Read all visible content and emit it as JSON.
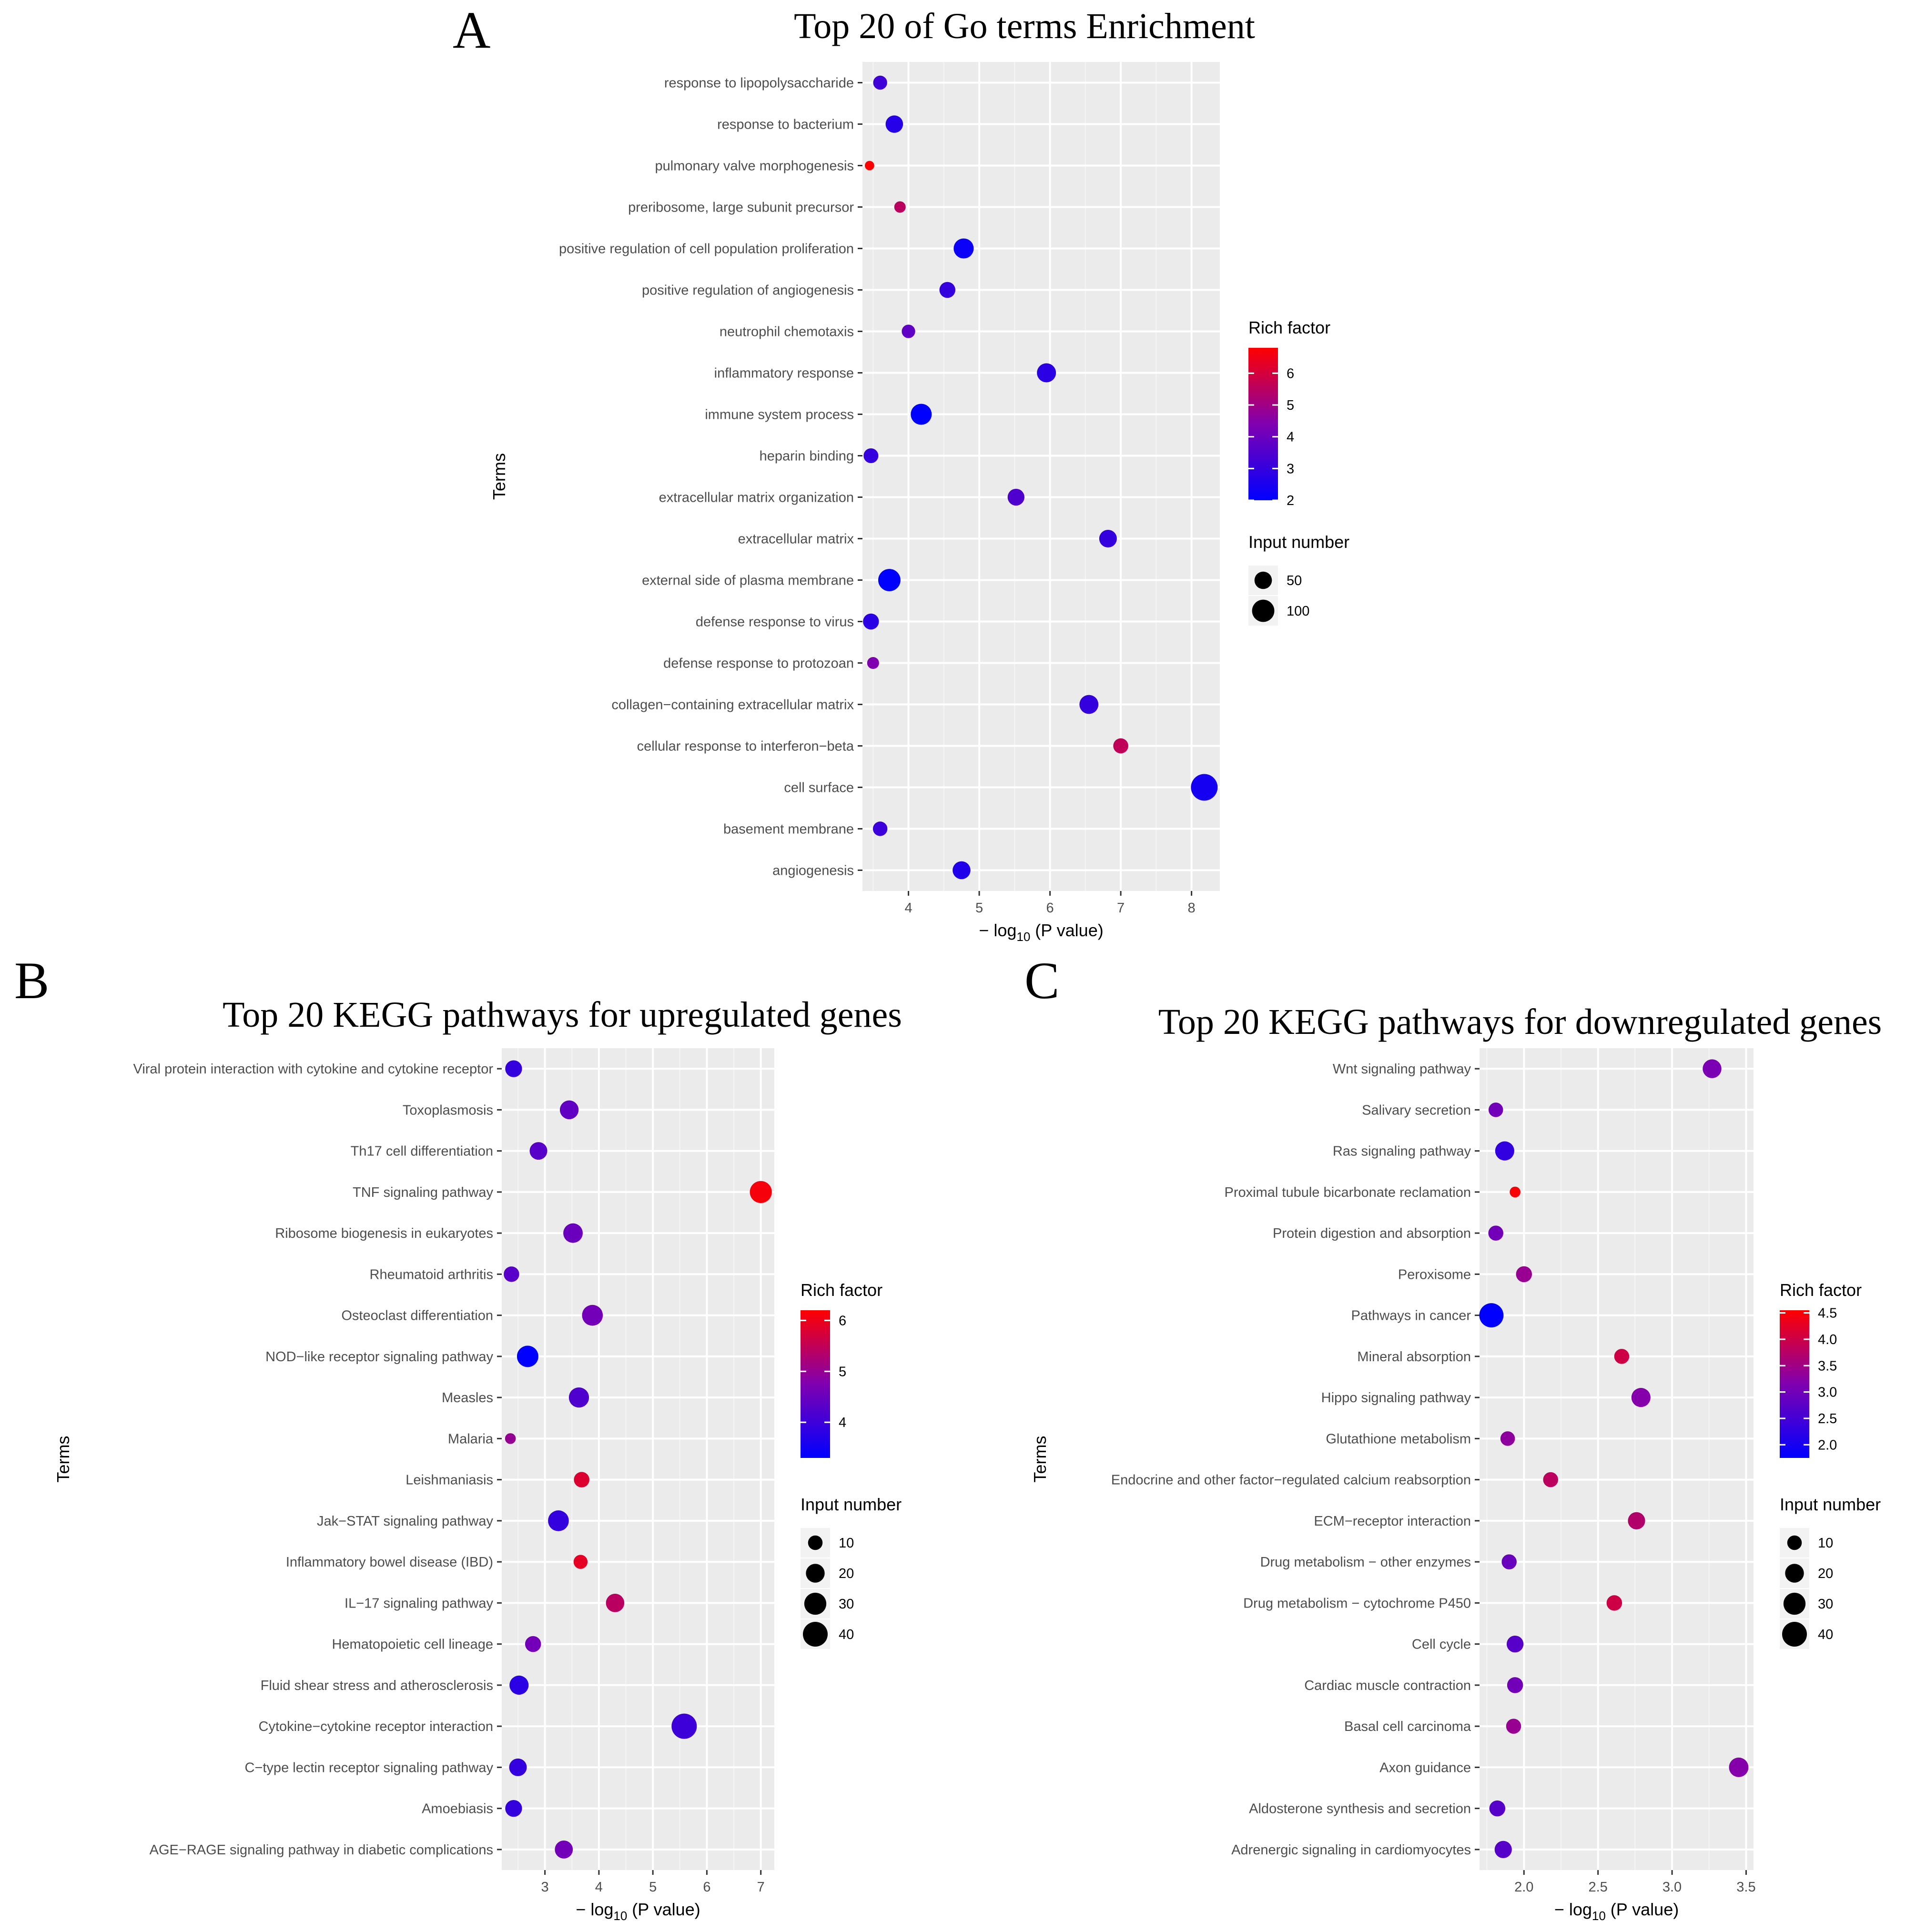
{
  "chart_data": [
    {
      "panel": "A",
      "type": "scatter",
      "title": "Top 20 of Go terms Enrichment",
      "xlabel_prefix": "− log",
      "xlabel_sub": "10",
      "xlabel_suffix": " (P value)",
      "ylabel": "Terms",
      "xlim": [
        3.35,
        8.4
      ],
      "xticks": [
        4,
        5,
        6,
        7,
        8
      ],
      "color_legend": {
        "title": "Rich factor",
        "min": 2,
        "max": 6.8,
        "ticks": [
          2,
          3,
          4,
          5,
          6
        ]
      },
      "size_legend": {
        "title": "Input number",
        "domain": [
          0,
          160
        ],
        "entries": [
          50,
          100
        ]
      },
      "terms": [
        "response to lipopolysaccharide",
        "response to bacterium",
        "pulmonary valve morphogenesis",
        "preribosome, large subunit precursor",
        "positive regulation of cell population proliferation",
        "positive regulation of angiogenesis",
        "neutrophil chemotaxis",
        "inflammatory response",
        "immune system process",
        "heparin binding",
        "extracellular matrix organization",
        "extracellular matrix",
        "external side of plasma membrane",
        "defense response to virus",
        "defense response to protozoan",
        "collagen−containing extracellular matrix",
        "cellular response to interferon−beta",
        "cell surface",
        "basement membrane",
        "angiogenesis"
      ],
      "x": [
        3.6,
        3.8,
        3.45,
        3.88,
        4.78,
        4.55,
        4.0,
        5.95,
        4.18,
        3.47,
        5.52,
        6.82,
        3.73,
        3.47,
        3.5,
        6.55,
        7.0,
        8.18,
        3.6,
        4.75
      ],
      "rich_factor": [
        3.2,
        2.7,
        6.8,
        5.5,
        2.2,
        3.0,
        3.8,
        2.8,
        2.0,
        3.0,
        3.5,
        3.0,
        2.0,
        2.8,
        4.4,
        3.0,
        5.6,
        2.4,
        3.1,
        2.6
      ],
      "input_number": [
        25,
        50,
        5,
        12,
        75,
        38,
        22,
        65,
        85,
        30,
        45,
        52,
        100,
        38,
        14,
        64,
        32,
        160,
        28,
        54
      ]
    },
    {
      "panel": "B",
      "type": "scatter",
      "title": "Top 20 KEGG pathways for upregulated genes",
      "xlabel_prefix": "− log",
      "xlabel_sub": "10",
      "xlabel_suffix": " (P value)",
      "ylabel": "Terms",
      "xlim": [
        2.2,
        7.25
      ],
      "xticks": [
        3,
        4,
        5,
        6,
        7
      ],
      "color_legend": {
        "title": "Rich factor",
        "min": 3.3,
        "max": 6.2,
        "ticks": [
          4,
          5,
          6
        ]
      },
      "size_legend": {
        "title": "Input number",
        "domain": [
          0,
          40
        ],
        "entries": [
          10,
          20,
          30,
          40
        ]
      },
      "terms": [
        "Viral protein interaction with cytokine and cytokine receptor",
        "Toxoplasmosis",
        "Th17 cell differentiation",
        "TNF signaling pathway",
        "Ribosome biogenesis in eukaryotes",
        "Rheumatoid arthritis",
        "Osteoclast differentiation",
        "NOD−like receptor signaling pathway",
        "Measles",
        "Malaria",
        "Leishmaniasis",
        "Jak−STAT signaling pathway",
        "Inflammatory bowel disease (IBD)",
        "IL−17 signaling pathway",
        "Hematopoietic cell lineage",
        "Fluid shear stress and atherosclerosis",
        "Cytokine−cytokine receptor interaction",
        "C−type lectin receptor signaling pathway",
        "Amoebiasis",
        "AGE−RAGE signaling pathway in diabetic complications"
      ],
      "x": [
        2.42,
        3.45,
        2.88,
        7.0,
        3.52,
        2.38,
        3.88,
        2.68,
        3.63,
        2.36,
        3.68,
        3.25,
        3.66,
        4.3,
        2.78,
        2.52,
        5.58,
        2.5,
        2.42,
        3.35
      ],
      "rich_factor": [
        3.9,
        4.4,
        4.3,
        6.1,
        4.5,
        4.3,
        4.6,
        3.3,
        4.2,
        5.0,
        5.8,
        3.9,
        5.9,
        5.4,
        4.6,
        3.8,
        4.0,
        3.9,
        3.9,
        4.6
      ],
      "input_number": [
        15,
        20,
        17,
        30,
        22,
        12,
        26,
        28,
        24,
        4,
        12,
        26,
        9,
        19,
        13,
        21,
        42,
        17,
        15,
        18
      ]
    },
    {
      "panel": "C",
      "type": "scatter",
      "title": "Top 20 KEGG pathways for downregulated genes",
      "xlabel_prefix": "− log",
      "xlabel_sub": "10",
      "xlabel_suffix": " (P value)",
      "ylabel": "Terms",
      "xlim": [
        1.7,
        3.55
      ],
      "xticks": [
        2.0,
        2.5,
        3.0,
        3.5
      ],
      "xtick_labels": [
        "2.0",
        "2.5",
        "3.0",
        "3.5"
      ],
      "color_legend": {
        "title": "Rich factor",
        "min": 1.75,
        "max": 4.55,
        "ticks": [
          2.0,
          2.5,
          3.0,
          3.5,
          4.0,
          4.5
        ],
        "tick_labels": [
          "2.0",
          "2.5",
          "3.0",
          "3.5",
          "4.0",
          "4.5"
        ]
      },
      "size_legend": {
        "title": "Input number",
        "domain": [
          0,
          40
        ],
        "entries": [
          10,
          20,
          30,
          40
        ]
      },
      "terms": [
        "Wnt signaling pathway",
        "Salivary secretion",
        "Ras signaling pathway",
        "Proximal tubule bicarbonate reclamation",
        "Protein digestion and absorption",
        "Peroxisome",
        "Pathways in cancer",
        "Mineral absorption",
        "Hippo signaling pathway",
        "Glutathione metabolism",
        "Endocrine and other factor−regulated calcium reabsorption",
        "ECM−receptor interaction",
        "Drug metabolism − other enzymes",
        "Drug metabolism − cytochrome P450",
        "Cell cycle",
        "Cardiac muscle contraction",
        "Basal cell carcinoma",
        "Axon guidance",
        "Aldosterone synthesis and secretion",
        "Adrenergic signaling in cardiomyocytes"
      ],
      "x": [
        3.27,
        1.81,
        1.87,
        1.94,
        1.81,
        2.0,
        1.78,
        2.66,
        2.79,
        1.89,
        2.18,
        2.76,
        1.9,
        2.61,
        1.94,
        1.94,
        1.93,
        3.45,
        1.82,
        1.86
      ],
      "rich_factor": [
        3.1,
        3.0,
        2.3,
        4.5,
        3.0,
        3.4,
        1.75,
        4.0,
        3.2,
        3.3,
        3.8,
        3.7,
        2.9,
        4.0,
        2.7,
        3.0,
        3.4,
        3.2,
        2.7,
        2.7
      ],
      "input_number": [
        20,
        10,
        21,
        4,
        11,
        13,
        38,
        11,
        21,
        10,
        11,
        16,
        11,
        12,
        15,
        13,
        11,
        22,
        13,
        16
      ]
    }
  ]
}
